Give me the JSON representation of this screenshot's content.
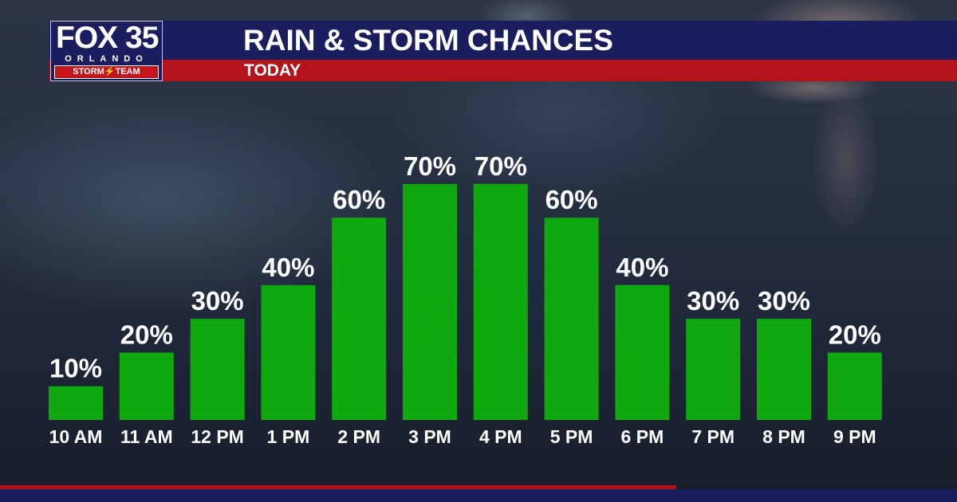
{
  "header": {
    "title": "RAIN & STORM CHANCES",
    "subtitle": "TODAY"
  },
  "logo": {
    "fox": "FOX 35",
    "city": "ORLANDO",
    "team": "STORM⚡TEAM"
  },
  "colors": {
    "bar": "#0fa80f",
    "header_blue": "#1a1e5e",
    "header_red": "#b3141c",
    "text": "#ffffff"
  },
  "chart_data": {
    "type": "bar",
    "title": "RAIN & STORM CHANCES",
    "subtitle": "TODAY",
    "categories": [
      "10 AM",
      "11 AM",
      "12 PM",
      "1 PM",
      "2 PM",
      "3 PM",
      "4 PM",
      "5 PM",
      "6 PM",
      "7 PM",
      "8 PM",
      "9 PM"
    ],
    "values": [
      10,
      20,
      30,
      40,
      60,
      70,
      70,
      60,
      40,
      30,
      30,
      20
    ],
    "value_suffix": "%",
    "ylim": [
      0,
      70
    ],
    "grid": false
  }
}
